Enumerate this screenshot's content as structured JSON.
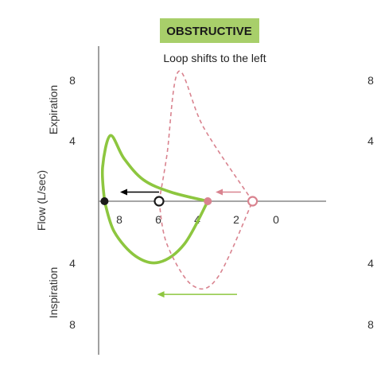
{
  "chart_data": {
    "type": "line",
    "badge": "OBSTRUCTIVE",
    "subtitle": "Loop shifts to the left",
    "ylabel": "Flow (L/sec)",
    "ylabel_top": "Expiration",
    "ylabel_bottom": "Inspiration",
    "x_ticks": [
      "8",
      "6",
      "4",
      "2",
      "0"
    ],
    "y_ticks_top": [
      "8",
      "4"
    ],
    "y_ticks_bottom": [
      "4",
      "8"
    ],
    "right_ticks": [
      "8",
      "4",
      "4",
      "8"
    ],
    "colors": {
      "obstructive": "#8dc63f",
      "normal": "#d9838f",
      "badge_bg": "#a8cf6a",
      "axis": "#888888"
    },
    "series": [
      {
        "key": "obstructive",
        "style": "solid",
        "expiration": [
          [
            8.8,
            0
          ],
          [
            8.9,
            2.2
          ],
          [
            8.5,
            4.3
          ],
          [
            7.8,
            2.8
          ],
          [
            6.8,
            1.4
          ],
          [
            5.4,
            0.6
          ],
          [
            3.5,
            0
          ]
        ],
        "inspiration": [
          [
            8.8,
            0
          ],
          [
            8.3,
            -2.0
          ],
          [
            7.2,
            -3.6
          ],
          [
            6.0,
            -4.0
          ],
          [
            4.7,
            -2.8
          ],
          [
            3.5,
            0
          ]
        ]
      },
      {
        "key": "normal",
        "style": "dashed",
        "expiration": [
          [
            6.0,
            0
          ],
          [
            5.6,
            3.0
          ],
          [
            5.0,
            8.5
          ],
          [
            3.7,
            4.8
          ],
          [
            1.2,
            0
          ]
        ],
        "inspiration": [
          [
            6.0,
            0
          ],
          [
            5.6,
            -2.8
          ],
          [
            4.3,
            -5.5
          ],
          [
            3.0,
            -5.0
          ],
          [
            1.2,
            0
          ]
        ]
      }
    ],
    "markers": [
      {
        "x": 8.8,
        "y": 0,
        "color": "obstructive-dark",
        "fill": "solid"
      },
      {
        "x": 6.0,
        "y": 0,
        "color": "obstructive-dark",
        "fill": "open"
      },
      {
        "x": 3.5,
        "y": 0,
        "color": "normal",
        "fill": "solid"
      },
      {
        "x": 1.2,
        "y": 0,
        "color": "normal",
        "fill": "open"
      }
    ],
    "arrows": [
      {
        "from": [
          6.0,
          0.6
        ],
        "to": [
          8.0,
          0.6
        ],
        "color": "#000000"
      },
      {
        "from": [
          1.8,
          0.6
        ],
        "to": [
          3.1,
          0.6
        ],
        "color": "normal"
      },
      {
        "from": [
          2.0,
          -6.1
        ],
        "to": [
          6.1,
          -6.1
        ],
        "color": "obstructive"
      }
    ],
    "xlim": [
      10.5,
      -3.2
    ],
    "ylim": [
      -9.5,
      10
    ]
  }
}
